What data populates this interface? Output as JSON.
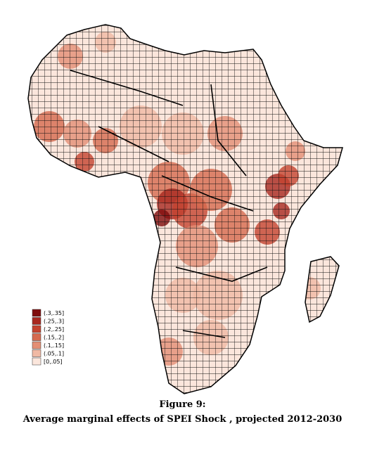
{
  "legend": {
    "items": [
      {
        "label": "(.3,.35]",
        "color": "#7f0c0c"
      },
      {
        "label": "(.25,.3]",
        "color": "#a8281f"
      },
      {
        "label": "(.2,.25]",
        "color": "#c4432f"
      },
      {
        "label": "(.15,.2]",
        "color": "#d66a4f"
      },
      {
        "label": "(.1,.15]",
        "color": "#e48f75"
      },
      {
        "label": "(.05,.1]",
        "color": "#f0b9a4"
      },
      {
        "label": "[0,.05]",
        "color": "#fbe6dc"
      }
    ]
  },
  "caption": {
    "figure": "Figure 9:",
    "title": "Average marginal effects of SPEI Shock , projected 2012-2030"
  }
}
